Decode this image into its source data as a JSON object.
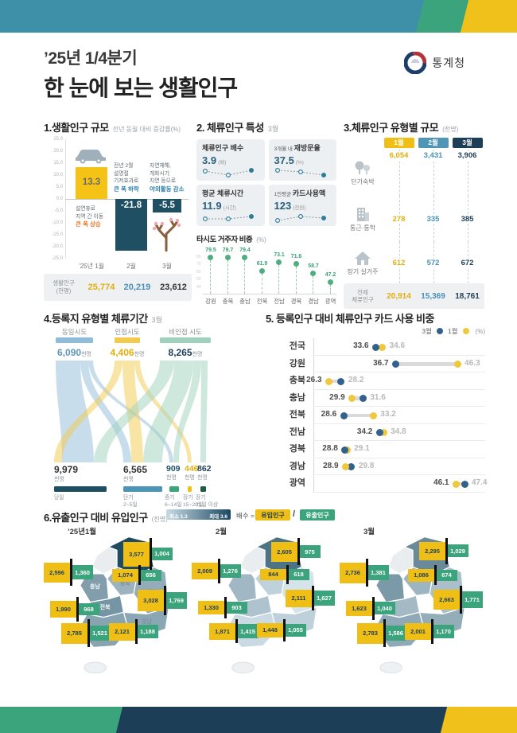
{
  "header": {
    "quarter": "’25년 1/4분기",
    "title": "한 눈에 보는 생활인구",
    "agency": "통계청"
  },
  "chart_data": [
    {
      "type": "bar",
      "title": "1.생활인구 규모",
      "subtitle": "전년 동월 대비 증감률(%)",
      "categories": [
        "’25년 1월",
        "2월",
        "3월"
      ],
      "values": [
        13.3,
        -21.8,
        -5.5
      ],
      "ylim": [
        -25,
        25
      ],
      "y_tick_step": 5,
      "grid": false,
      "bar_colors": [
        "#F5C216",
        "#1F4F63",
        "#1F4F63"
      ],
      "annotations": [
        {
          "lines": [
            "설연휴로",
            "지역 간 이동"
          ],
          "em": "큰 폭 상승",
          "em_color": "#E8762B"
        },
        {
          "lines": [
            "전년 2월",
            "설명절",
            "기저효과로"
          ],
          "em": "큰 폭 하락",
          "em_color": "#2C7FA8"
        },
        {
          "lines": [
            "자연재해,",
            "개화시기",
            "지연 등으로"
          ],
          "em": "야외활동 감소",
          "em_color": "#2C7FA8"
        }
      ],
      "footer": {
        "label_lines": [
          "생활인구",
          "(천명)"
        ],
        "values": [
          25774,
          20219,
          23612
        ],
        "colors": [
          "#E2AF0E",
          "#4A90B8",
          "#333333"
        ]
      }
    },
    {
      "type": "table",
      "title": "2. 체류인구 특성",
      "period": "3월",
      "cards": [
        {
          "pre": "",
          "name": "체류인구 배수",
          "value": "3.9",
          "unit": "(배)",
          "spark": [
            4,
            9,
            3
          ]
        },
        {
          "pre": "3개월 내",
          "name": "재방문율",
          "value": "37.5",
          "unit": "(%)",
          "spark": [
            3,
            5,
            9
          ]
        },
        {
          "pre": "",
          "name": "평균 체류시간",
          "value": "11.9",
          "unit": "(시간)",
          "spark": [
            7,
            7,
            4
          ]
        },
        {
          "pre": "1인평균",
          "name": "카드사용액",
          "value": "123",
          "unit": "(천원)",
          "spark": [
            9,
            4,
            6
          ]
        }
      ],
      "lollipop": {
        "title": "타시도 거주자 비중",
        "unit": "(%)",
        "ticks": [
          80,
          70,
          60,
          50,
          40
        ],
        "categories": [
          "강원",
          "충북",
          "충남",
          "전북",
          "전남",
          "경북",
          "경남",
          "광역"
        ],
        "values": [
          79.5,
          79.7,
          79.4,
          61.9,
          73.1,
          71.6,
          58.7,
          47.2
        ],
        "dot_color": "#4FAE7F"
      }
    },
    {
      "type": "table",
      "title": "3.체류인구 유형별 규모",
      "unit": "(천명)",
      "columns": [
        "1월",
        "2월",
        "3월"
      ],
      "column_bg": [
        "#F0BF16",
        "#4F95B5",
        "#1D3E57"
      ],
      "value_colors": [
        "#E2AF0E",
        "#4A90B8",
        "#1D3E57"
      ],
      "rows": [
        {
          "icon": "trees-icon",
          "label": "단기숙박",
          "values": [
            6054,
            3431,
            3906
          ]
        },
        {
          "icon": "building-icon",
          "label": "통근·통학",
          "values": [
            278,
            335,
            385
          ]
        },
        {
          "icon": "house-icon",
          "label": "장기 실거주",
          "values": [
            612,
            572,
            672
          ]
        }
      ],
      "total": {
        "label_lines": [
          "전체",
          "체류인구"
        ],
        "values": [
          20914,
          15369,
          18761
        ]
      }
    },
    {
      "type": "area",
      "title": "4.등록지 유형별 체류기간",
      "period": "3월",
      "unit": "천명",
      "sources": [
        {
          "label": "동일시도",
          "value": 6090,
          "bar_color": "#8FBCD9",
          "num_color": "#5E97BC"
        },
        {
          "label": "인접시도",
          "value": 4406,
          "bar_color": "#F2CB4C",
          "num_color": "#E2AF0E"
        },
        {
          "label": "비인접 시도",
          "value": 8265,
          "bar_color": "#9FD1BD",
          "num_color": "#1D3E57"
        }
      ],
      "targets": [
        {
          "label_lines": [
            "당일"
          ],
          "value": 9979,
          "bar_color": "#1F4F63",
          "num_color": "#333333"
        },
        {
          "label_lines": [
            "단기",
            "2~5일"
          ],
          "value": 6565,
          "bar_color": "#4E94B4",
          "num_color": "#333333"
        },
        {
          "label_lines": [
            "중기",
            "6~14일"
          ],
          "value": 909,
          "bar_color": "#3BA47C",
          "num_color": "#1F4F63"
        },
        {
          "label_lines": [
            "장기",
            "15~20일"
          ],
          "value": 446,
          "bar_color": "#F0BF16",
          "num_color": "#E2AF0E"
        },
        {
          "label_lines": [
            "장기",
            "21일 이상"
          ],
          "value": 862,
          "bar_color": "#1E5C45",
          "num_color": "#1D3E57"
        }
      ]
    },
    {
      "type": "scatter",
      "title": "5. 등록인구 대비 체류인구 카드 사용 비중",
      "unit": "(%)",
      "legend": [
        {
          "label": "3월",
          "color": "#33618E"
        },
        {
          "label": "1월",
          "color": "#EFC83D"
        }
      ],
      "xlim": [
        24,
        50
      ],
      "categories": [
        "전국",
        "강원",
        "충북",
        "충남",
        "전북",
        "전남",
        "경북",
        "경남",
        "광역"
      ],
      "series": [
        {
          "name": "3월",
          "values": [
            33.6,
            36.7,
            28.2,
            31.6,
            28.6,
            34.2,
            28.8,
            29.8,
            47.4
          ]
        },
        {
          "name": "1월",
          "values": [
            34.6,
            46.3,
            26.3,
            29.9,
            33.2,
            34.8,
            29.1,
            28.9,
            46.1
          ]
        }
      ],
      "left_labels": [
        {
          "value": 33.6,
          "month": "3월"
        },
        {
          "value": 36.7,
          "month": "3월"
        },
        {
          "value": 26.3,
          "month": "1월"
        },
        {
          "value": 29.9,
          "month": "1월"
        },
        {
          "value": 28.6,
          "month": "3월"
        },
        {
          "value": 34.2,
          "month": "3월"
        },
        {
          "value": 28.8,
          "month": "3월"
        },
        {
          "value": 28.9,
          "month": "1월"
        },
        {
          "value": 46.1,
          "month": "1월"
        }
      ]
    },
    {
      "type": "heatmap",
      "title": "6.유출인구 대비 유입인구",
      "unit": "(천명)",
      "scale": {
        "min": 1.3,
        "max": 3.6,
        "min_label": "최소 1.3",
        "max_label": "최대 3.6"
      },
      "formula": {
        "label": "배수 =",
        "numerator": "유입인구",
        "slash": "/",
        "denominator": "유출인구",
        "numerator_bg": "#F0BF16",
        "denominator_bg": "#3BA47C"
      },
      "region_names": {
        "gangwon": "강원",
        "chungbuk": "충북",
        "chungnam": "충남",
        "gyeongbuk": "경북",
        "jeonbuk": "전북",
        "jeonnam": "전남",
        "gyeongnam": "경남"
      },
      "months": [
        {
          "label": "’25년1월",
          "show_names": true,
          "inflow_outflow": {
            "gangwon": [
              3577,
              1004
            ],
            "chungbuk": [
              1074,
              656
            ],
            "chungnam": [
              2596,
              1360
            ],
            "gyeongbuk": [
              3028,
              1769
            ],
            "jeonbuk": [
              1990,
              968
            ],
            "jeonnam": [
              2785,
              1521
            ],
            "gyeongnam": [
              2121,
              1188
            ]
          }
        },
        {
          "label": "2월",
          "show_names": false,
          "inflow_outflow": {
            "gangwon": [
              2605,
              975
            ],
            "chungbuk": [
              844,
              618
            ],
            "chungnam": [
              2009,
              1276
            ],
            "gyeongbuk": [
              2111,
              1627
            ],
            "jeonbuk": [
              1330,
              903
            ],
            "jeonnam": [
              1871,
              1415
            ],
            "gyeongnam": [
              1448,
              1055
            ]
          }
        },
        {
          "label": "3월",
          "show_names": false,
          "inflow_outflow": {
            "gangwon": [
              2295,
              1029
            ],
            "chungbuk": [
              1086,
              674
            ],
            "chungnam": [
              2736,
              1381
            ],
            "gyeongbuk": [
              2663,
              1771
            ],
            "jeonbuk": [
              1623,
              1040
            ],
            "jeonnam": [
              2783,
              1586
            ],
            "gyeongnam": [
              2001,
              1170
            ]
          }
        }
      ]
    }
  ],
  "banner_colors": {
    "teal": "#3E8FA8",
    "green": "#3BA47C",
    "navy": "#1D3E57",
    "yellow": "#F0C01B"
  }
}
